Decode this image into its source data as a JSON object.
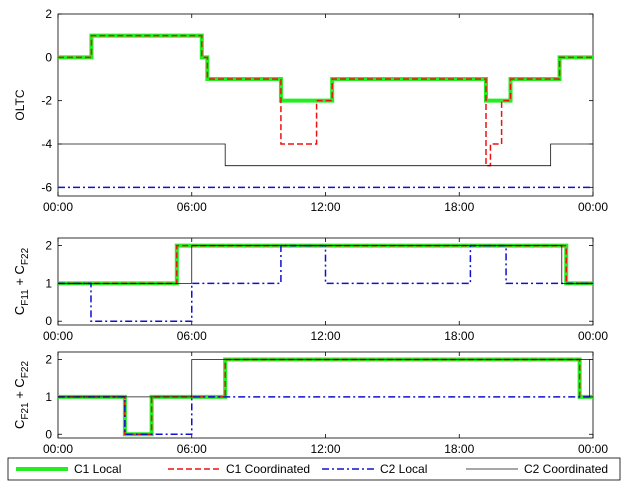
{
  "chart_data": [
    {
      "type": "line",
      "ylabel": "OLTC",
      "xlim": [
        0,
        24
      ],
      "ylim": [
        -6.4,
        2
      ],
      "xticks": [
        {
          "value": 0,
          "label": "00:00"
        },
        {
          "value": 6,
          "label": "06:00"
        },
        {
          "value": 12,
          "label": "12:00"
        },
        {
          "value": 18,
          "label": "18:00"
        },
        {
          "value": 24,
          "label": "00:00"
        }
      ],
      "yticks": [
        2,
        0,
        -2,
        -4,
        -6
      ],
      "series": [
        {
          "name": "C1 Local",
          "color": "#22ee22",
          "style": "solid",
          "width": 4,
          "x": [
            0,
            1.5,
            6.45,
            6.7,
            10,
            12.3,
            19.2,
            20.3,
            22.5,
            24
          ],
          "values": [
            0,
            1,
            0,
            -1,
            -2,
            -1,
            -2,
            -1,
            0,
            0
          ]
        },
        {
          "name": "C1 Coordinated",
          "color": "#ee1111",
          "style": "dashed",
          "width": 1.5,
          "x": [
            0,
            1.5,
            6.45,
            6.7,
            10,
            11.6,
            12.3,
            19.2,
            19.4,
            19.9,
            20.3,
            22.5,
            24
          ],
          "values": [
            0,
            1,
            0,
            -1,
            -4,
            -2,
            -1,
            -5,
            -4,
            -2,
            -1,
            0,
            0
          ]
        },
        {
          "name": "C2 Local",
          "color": "#1111cc",
          "style": "dashdot",
          "width": 1.5,
          "x": [
            0,
            24
          ],
          "values": [
            -6,
            -6
          ]
        },
        {
          "name": "C2 Coordinated",
          "color": "#111111",
          "style": "solid",
          "width": 0.8,
          "x": [
            0,
            7.5,
            22.1,
            24
          ],
          "values": [
            -4,
            -5,
            -4,
            -4
          ]
        }
      ]
    },
    {
      "type": "line",
      "ylabel_parts": [
        "C",
        "F11",
        " + C",
        "F22"
      ],
      "xlim": [
        0,
        24
      ],
      "ylim": [
        -0.1,
        2.2
      ],
      "xticks": [
        {
          "value": 0,
          "label": "00:00"
        },
        {
          "value": 6,
          "label": "06:00"
        },
        {
          "value": 12,
          "label": "12:00"
        },
        {
          "value": 18,
          "label": "18:00"
        },
        {
          "value": 24,
          "label": "00:00"
        }
      ],
      "yticks": [
        0,
        1,
        2
      ],
      "series": [
        {
          "color": "#22ee22",
          "style": "solid",
          "width": 4,
          "x": [
            0,
            5.33,
            22.8,
            24
          ],
          "values": [
            1,
            2,
            1,
            1
          ]
        },
        {
          "color": "#ee1111",
          "style": "dashed",
          "width": 1.5,
          "x": [
            0,
            5.33,
            22.8,
            24
          ],
          "values": [
            1,
            2,
            1,
            1
          ]
        },
        {
          "color": "#1111cc",
          "style": "dashdot",
          "width": 1.5,
          "x": [
            0,
            1.48,
            6,
            10,
            12,
            18.5,
            20.1,
            24
          ],
          "values": [
            1,
            0,
            1,
            2,
            1,
            2,
            1,
            1
          ]
        },
        {
          "color": "#111111",
          "style": "solid",
          "width": 0.8,
          "x": [
            0,
            6,
            22.6,
            24
          ],
          "values": [
            1,
            2,
            1,
            1
          ]
        }
      ]
    },
    {
      "type": "line",
      "ylabel_parts": [
        "C",
        "F21",
        " + C",
        "F22"
      ],
      "xlim": [
        0,
        24
      ],
      "ylim": [
        -0.1,
        2.2
      ],
      "xticks": [
        {
          "value": 0,
          "label": "00:00"
        },
        {
          "value": 6,
          "label": "06:00"
        },
        {
          "value": 12,
          "label": "12:00"
        },
        {
          "value": 18,
          "label": "18:00"
        },
        {
          "value": 24,
          "label": "00:00"
        }
      ],
      "yticks": [
        0,
        1,
        2
      ],
      "series": [
        {
          "color": "#22ee22",
          "style": "solid",
          "width": 4,
          "x": [
            0,
            3,
            4.2,
            7.5,
            23.4,
            24
          ],
          "values": [
            1,
            0,
            1,
            2,
            1,
            1
          ]
        },
        {
          "color": "#ee1111",
          "style": "dashed",
          "width": 1.5,
          "x": [
            0,
            3,
            4.2,
            7.5,
            23.4,
            24
          ],
          "values": [
            1,
            0,
            1,
            2,
            1,
            1
          ]
        },
        {
          "color": "#1111cc",
          "style": "dashdot",
          "width": 1.5,
          "x": [
            0,
            3,
            6,
            24
          ],
          "values": [
            1,
            0,
            1,
            1
          ]
        },
        {
          "color": "#111111",
          "style": "solid",
          "width": 0.8,
          "x": [
            0,
            6,
            23.85,
            24
          ],
          "values": [
            1,
            2,
            1,
            1
          ]
        }
      ]
    }
  ]
}
